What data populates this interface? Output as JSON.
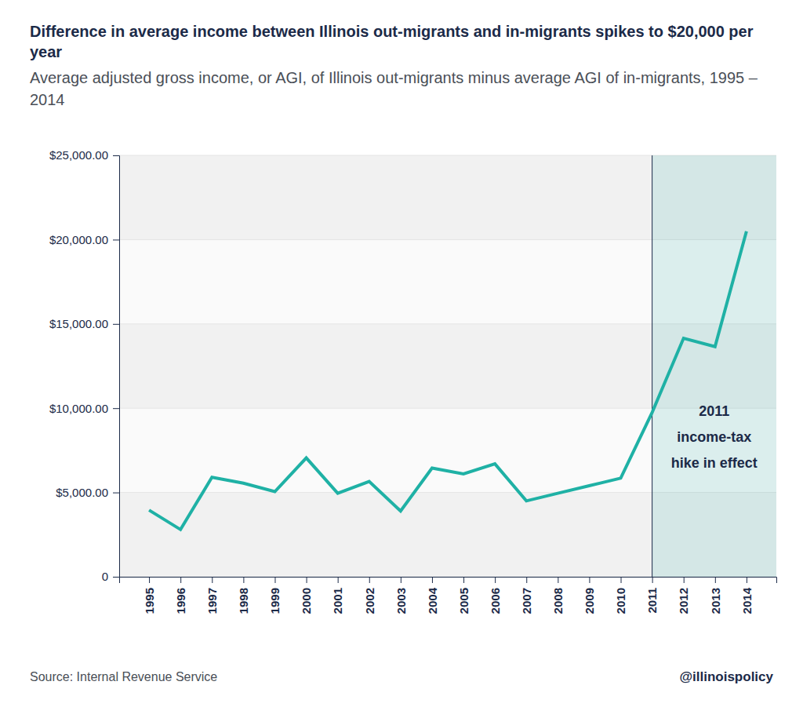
{
  "chart_data": {
    "type": "line",
    "title": "Difference in average income between Illinois out-migrants and in-migrants spikes to $20,000 per year",
    "subtitle": "Average adjusted gross income, or AGI, of Illinois out-migrants minus average AGI of in-migrants, 1995 – 2014",
    "categories": [
      "1995",
      "1996",
      "1997",
      "1998",
      "1999",
      "2000",
      "2001",
      "2002",
      "2003",
      "2004",
      "2005",
      "2006",
      "2007",
      "2008",
      "2009",
      "2010",
      "2011",
      "2012",
      "2013",
      "2014"
    ],
    "values": [
      3950,
      2800,
      5900,
      5550,
      5050,
      7050,
      4950,
      5650,
      3900,
      6450,
      6100,
      6700,
      4500,
      4950,
      5400,
      5850,
      9750,
      14150,
      13650,
      20500
    ],
    "color": "#1fb1a5",
    "ylim": [
      0,
      25000
    ],
    "yticks": [
      0,
      {
        "value": 5000,
        "label": "$5,000.00"
      },
      {
        "value": 10000,
        "label": "$10,000.00"
      },
      {
        "value": 15000,
        "label": "$15,000.00"
      },
      {
        "value": 20000,
        "label": "$20,000.00"
      },
      {
        "value": 25000,
        "label": "$25,000.00"
      }
    ],
    "grid": true,
    "annotation": {
      "x": "2011",
      "lines": [
        "2011",
        "income-tax",
        "hike in effect"
      ]
    },
    "source": "Source: Internal Revenue Service",
    "credit": "@illinoispolicy"
  }
}
